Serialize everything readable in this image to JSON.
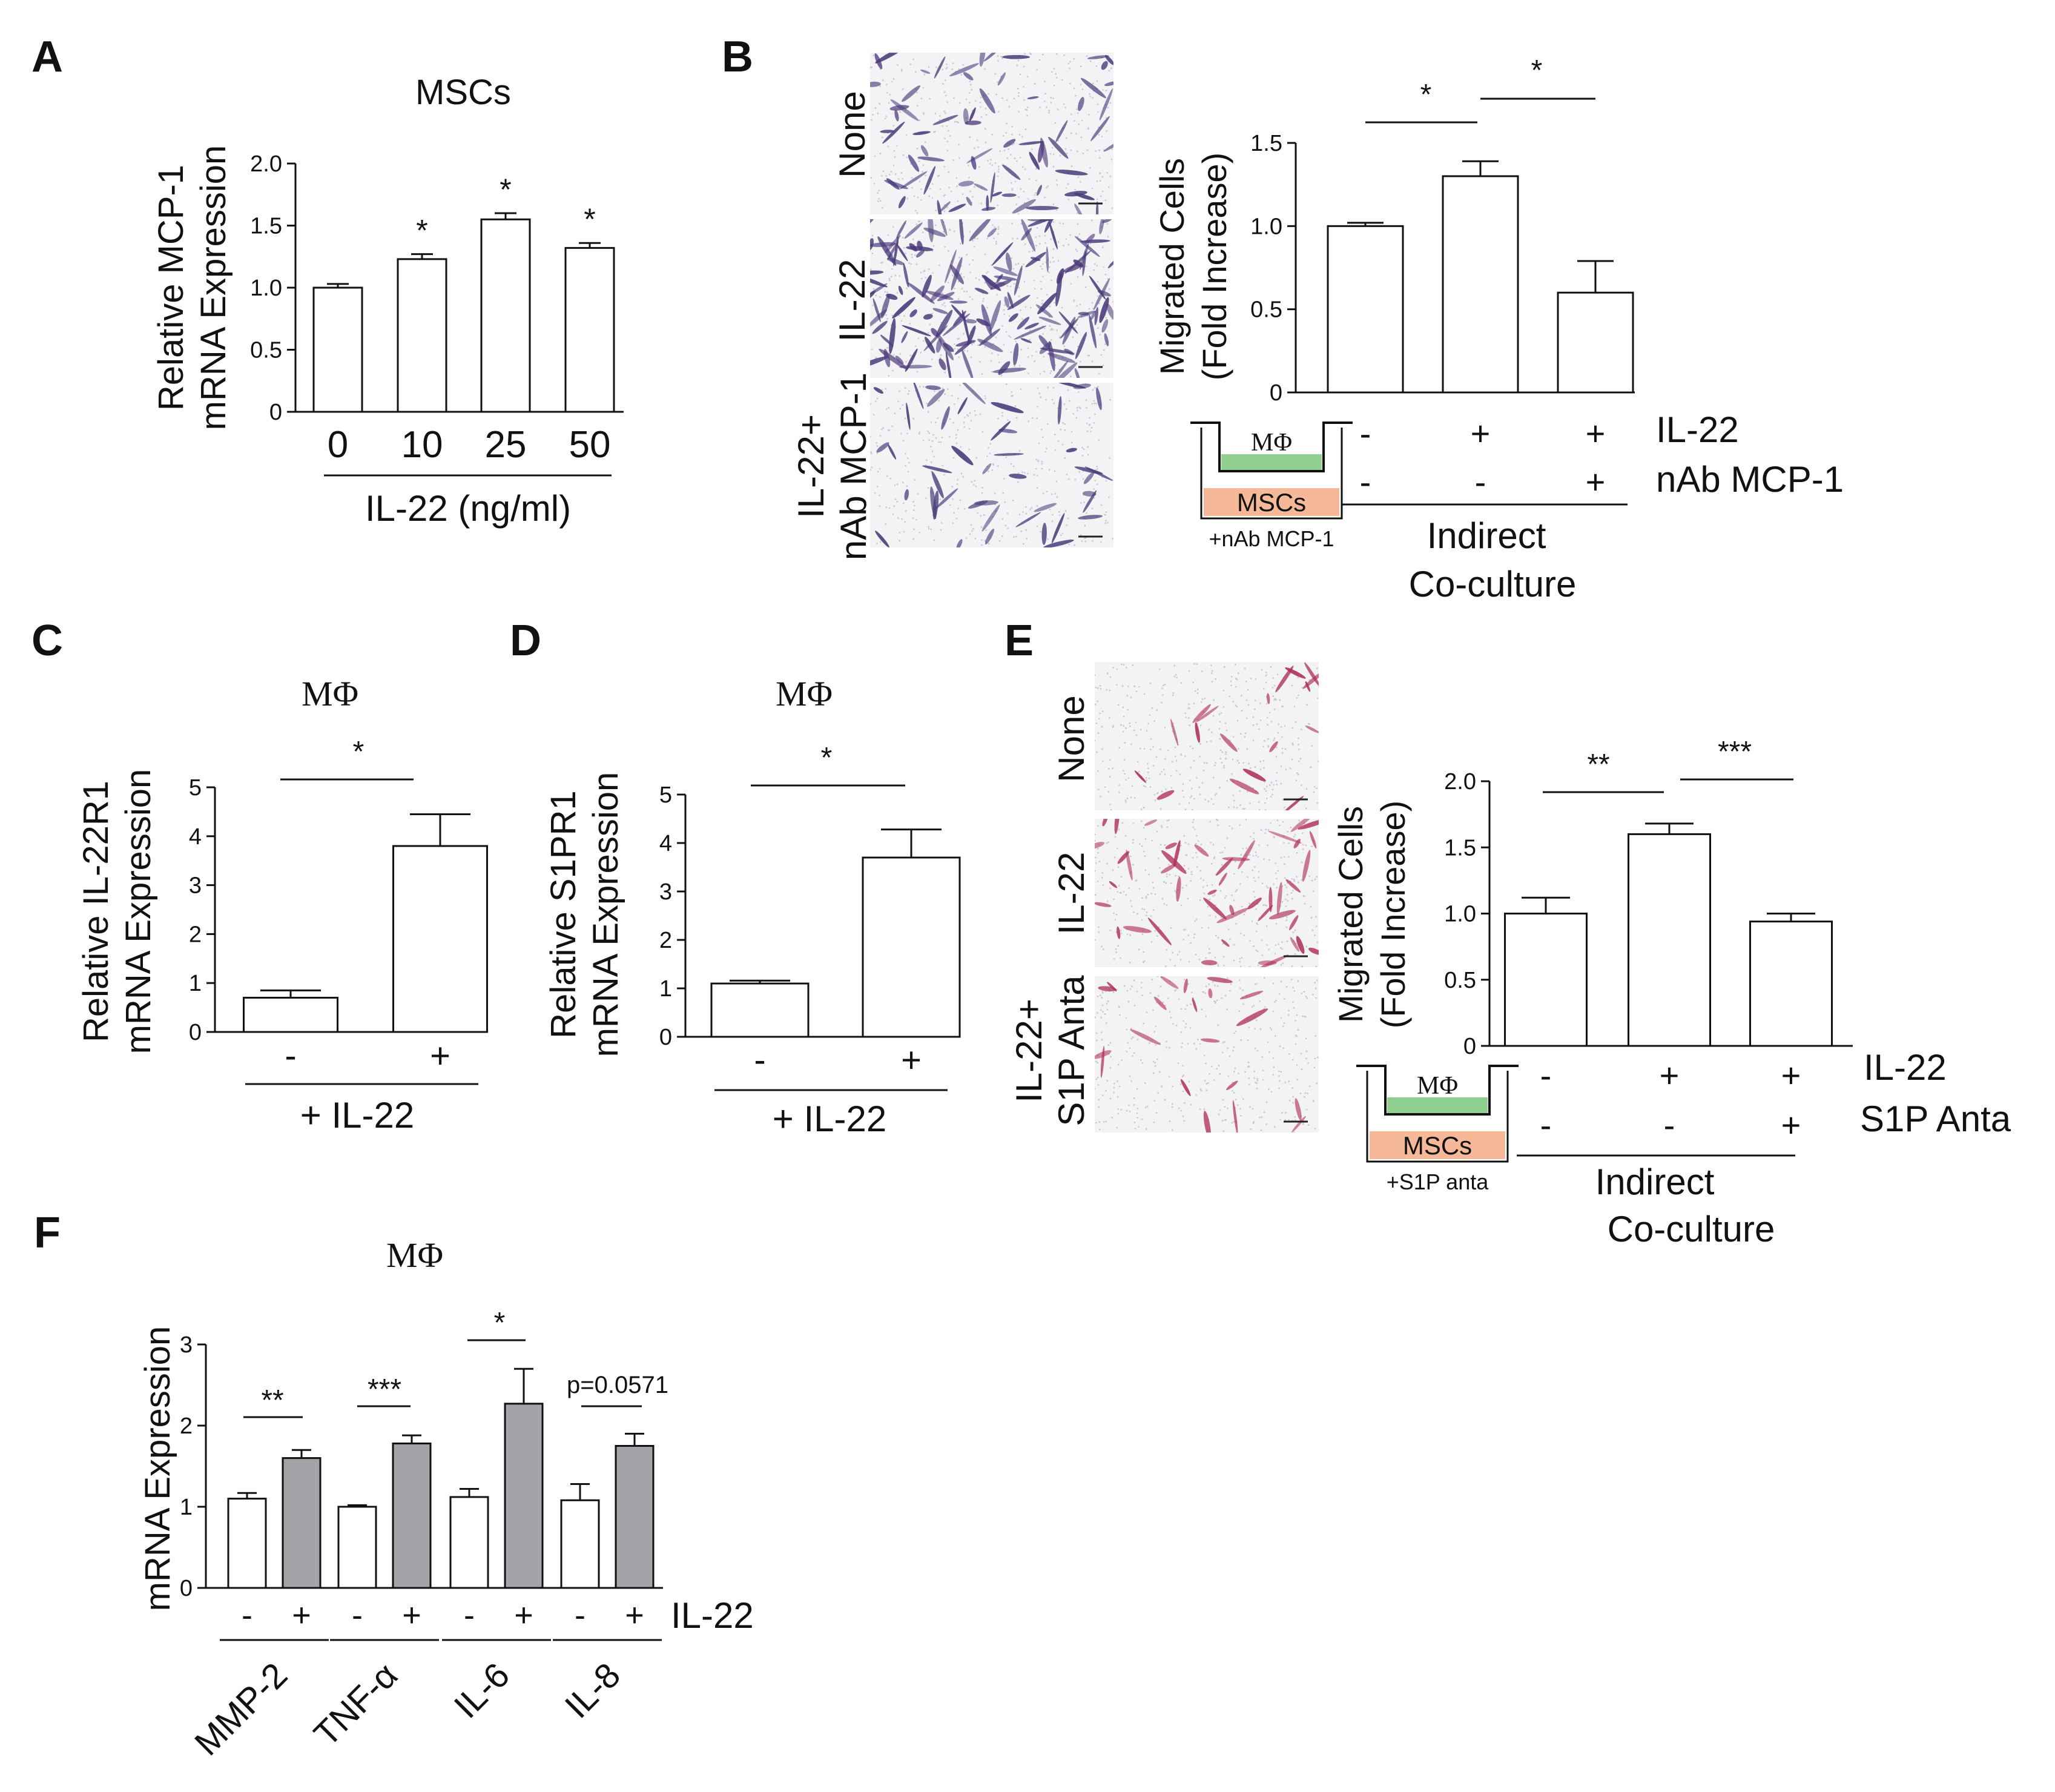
{
  "panels": {
    "A": {
      "letter": "A",
      "title": "MSCs",
      "ylabel": [
        "Relative MCP-1",
        "mRNA Expression"
      ],
      "xlabel": "IL-22 (ng/ml)"
    },
    "B": {
      "letter": "B",
      "ylabel": [
        "Migrated Cells",
        "(Fold Increase)"
      ],
      "row_names": [
        "IL-22",
        "nAb MCP-1"
      ],
      "xlabel": [
        "Indirect",
        "Co-culture"
      ],
      "image_labels": [
        "None",
        "IL-22",
        "IL-22+",
        "nAb MCP-1"
      ],
      "schematic": {
        "top": "MΦ",
        "bottom": "MSCs",
        "caption": "+nAb MCP-1"
      }
    },
    "C": {
      "letter": "C",
      "title": "MΦ",
      "ylabel": [
        "Relative IL-22R1",
        "mRNA Expression"
      ],
      "xlabel": "+ IL-22"
    },
    "D": {
      "letter": "D",
      "title": "MΦ",
      "ylabel": [
        "Relative S1PR1",
        "mRNA Expression"
      ],
      "xlabel": "+ IL-22"
    },
    "E": {
      "letter": "E",
      "ylabel": [
        "Migrated Cells",
        "(Fold Increase)"
      ],
      "row_names": [
        "IL-22",
        "S1P Anta"
      ],
      "xlabel": [
        "Indirect",
        "Co-culture"
      ],
      "image_labels": [
        "None",
        "IL-22",
        "IL-22+",
        "S1P Anta"
      ],
      "schematic": {
        "top": "MΦ",
        "bottom": "MSCs",
        "caption": "+S1P anta"
      }
    },
    "F": {
      "letter": "F",
      "title": "MΦ",
      "ylabel": "mRNA Expression",
      "row_name": "IL-22"
    }
  },
  "colors": {
    "bar_open": "#ffffff",
    "bar_treated": "#a4a4a8",
    "stroke": "#111111",
    "medium": "#8fd08f",
    "msc_layer": "#f5b898",
    "stain_b": "#4a3a7a",
    "stain_e": "#b0305a"
  },
  "chart_data": [
    {
      "panel": "A",
      "type": "bar",
      "categories": [
        "0",
        "10",
        "25",
        "50"
      ],
      "values": [
        1.0,
        1.23,
        1.55,
        1.32
      ],
      "errors": [
        0.03,
        0.04,
        0.05,
        0.04
      ],
      "ylim": [
        0,
        2.0
      ],
      "yticks": [
        "0",
        "0.5",
        "1.0",
        "1.5",
        "2.0"
      ],
      "significance": [
        "",
        "*",
        "*",
        "*"
      ]
    },
    {
      "panel": "B",
      "type": "bar",
      "categories": [
        "-/-",
        "+/-",
        "+/+"
      ],
      "values": [
        1.0,
        1.3,
        0.6
      ],
      "errors": [
        0.02,
        0.09,
        0.19
      ],
      "ylim": [
        0,
        1.5
      ],
      "yticks": [
        "0",
        "0.5",
        "1.0",
        "1.5"
      ],
      "rows": [
        [
          "-",
          "+",
          "+"
        ],
        [
          "-",
          "-",
          "+"
        ]
      ],
      "comparisons": [
        {
          "from": 0,
          "to": 1,
          "label": "*"
        },
        {
          "from": 1,
          "to": 2,
          "label": "*"
        }
      ]
    },
    {
      "panel": "C",
      "type": "bar",
      "categories": [
        "-",
        "+"
      ],
      "values": [
        0.7,
        3.8
      ],
      "errors": [
        0.15,
        0.65
      ],
      "ylim": [
        0,
        5
      ],
      "yticks": [
        "0",
        "1",
        "2",
        "3",
        "4",
        "5"
      ],
      "comparisons": [
        {
          "from": 0,
          "to": 1,
          "label": "*"
        }
      ]
    },
    {
      "panel": "D",
      "type": "bar",
      "categories": [
        "-",
        "+"
      ],
      "values": [
        1.1,
        3.7
      ],
      "errors": [
        0.06,
        0.58
      ],
      "ylim": [
        0,
        5
      ],
      "yticks": [
        "0",
        "1",
        "2",
        "3",
        "4",
        "5"
      ],
      "comparisons": [
        {
          "from": 0,
          "to": 1,
          "label": "*"
        }
      ]
    },
    {
      "panel": "E",
      "type": "bar",
      "categories": [
        "-/-",
        "+/-",
        "+/+"
      ],
      "values": [
        1.0,
        1.6,
        0.94
      ],
      "errors": [
        0.12,
        0.08,
        0.06
      ],
      "ylim": [
        0,
        2.0
      ],
      "yticks": [
        "0",
        "0.5",
        "1.0",
        "1.5",
        "2.0"
      ],
      "rows": [
        [
          "-",
          "+",
          "+"
        ],
        [
          "-",
          "-",
          "+"
        ]
      ],
      "comparisons": [
        {
          "from": 0,
          "to": 1,
          "label": "**"
        },
        {
          "from": 1,
          "to": 2,
          "label": "***"
        }
      ]
    },
    {
      "panel": "F",
      "type": "bar",
      "categories": [
        "MMP-2",
        "TNF-α",
        "IL-6",
        "IL-8"
      ],
      "series": [
        {
          "values": [
            1.1,
            1.0,
            1.12,
            1.08
          ],
          "errors": [
            0.07,
            0.02,
            0.1,
            0.2
          ]
        },
        {
          "values": [
            1.6,
            1.78,
            2.27,
            1.75
          ],
          "errors": [
            0.1,
            0.1,
            0.43,
            0.15
          ]
        }
      ],
      "ylim": [
        0,
        3
      ],
      "yticks": [
        "0",
        "1",
        "2",
        "3"
      ],
      "treatment": [
        "-",
        "+"
      ],
      "significance": [
        "**",
        "***",
        "*",
        "p=0.0571"
      ]
    }
  ]
}
